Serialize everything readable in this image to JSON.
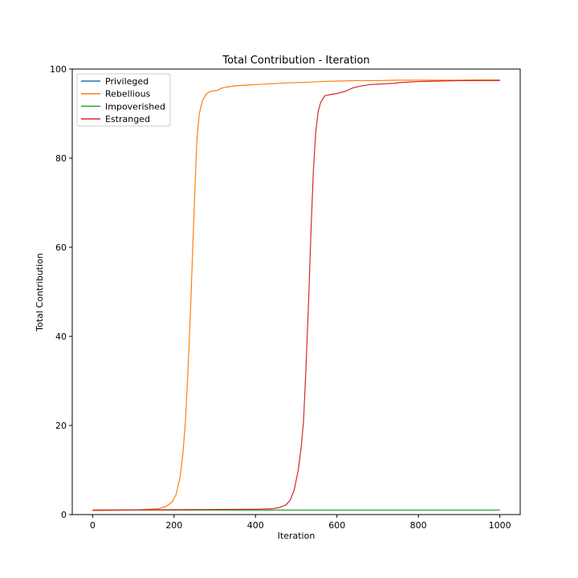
{
  "chart_data": {
    "type": "line",
    "title": "Total Contribution - Iteration",
    "xlabel": "Iteration",
    "ylabel": "Total Contribution",
    "xlim": [
      -50,
      1050
    ],
    "ylim": [
      0,
      100
    ],
    "xticks": [
      "0",
      "200",
      "400",
      "600",
      "800",
      "1000"
    ],
    "yticks": [
      "0",
      "20",
      "40",
      "60",
      "80",
      "100"
    ],
    "grid": false,
    "legend_position": "top-left",
    "series": [
      {
        "name": "Privileged",
        "color": "#1f77b4",
        "points": [
          [
            0,
            1.0
          ],
          [
            200,
            1.0
          ],
          [
            400,
            1.0
          ],
          [
            600,
            1.0
          ],
          [
            800,
            1.0
          ],
          [
            1000,
            1.0
          ]
        ]
      },
      {
        "name": "Rebellious",
        "color": "#ff7f0e",
        "points": [
          [
            0,
            0.9
          ],
          [
            100,
            1.0
          ],
          [
            160,
            1.3
          ],
          [
            180,
            1.8
          ],
          [
            195,
            2.8
          ],
          [
            205,
            4.5
          ],
          [
            215,
            8.5
          ],
          [
            222,
            14
          ],
          [
            228,
            21
          ],
          [
            234,
            32
          ],
          [
            240,
            45
          ],
          [
            246,
            60
          ],
          [
            252,
            75
          ],
          [
            256,
            84
          ],
          [
            262,
            90
          ],
          [
            270,
            93
          ],
          [
            280,
            94.5
          ],
          [
            290,
            95
          ],
          [
            305,
            95.2
          ],
          [
            320,
            95.8
          ],
          [
            340,
            96.1
          ],
          [
            360,
            96.3
          ],
          [
            380,
            96.4
          ],
          [
            400,
            96.5
          ],
          [
            440,
            96.7
          ],
          [
            480,
            96.9
          ],
          [
            520,
            97.0
          ],
          [
            560,
            97.2
          ],
          [
            600,
            97.3
          ],
          [
            650,
            97.4
          ],
          [
            700,
            97.4
          ],
          [
            750,
            97.5
          ],
          [
            800,
            97.5
          ],
          [
            850,
            97.5
          ],
          [
            900,
            97.5
          ],
          [
            950,
            97.6
          ],
          [
            1000,
            97.6
          ]
        ]
      },
      {
        "name": "Impoverished",
        "color": "#2ca02c",
        "points": [
          [
            0,
            1.0
          ],
          [
            200,
            1.0
          ],
          [
            400,
            1.0
          ],
          [
            600,
            1.0
          ],
          [
            800,
            1.0
          ],
          [
            1000,
            1.0
          ]
        ]
      },
      {
        "name": "Estranged",
        "color": "#d62728",
        "points": [
          [
            0,
            1.0
          ],
          [
            200,
            1.1
          ],
          [
            400,
            1.2
          ],
          [
            440,
            1.3
          ],
          [
            460,
            1.6
          ],
          [
            475,
            2.2
          ],
          [
            485,
            3.2
          ],
          [
            495,
            5.5
          ],
          [
            505,
            10
          ],
          [
            512,
            15
          ],
          [
            518,
            21
          ],
          [
            524,
            33
          ],
          [
            530,
            47
          ],
          [
            536,
            63
          ],
          [
            542,
            77
          ],
          [
            548,
            86
          ],
          [
            554,
            90.5
          ],
          [
            560,
            92.5
          ],
          [
            570,
            94
          ],
          [
            585,
            94.3
          ],
          [
            600,
            94.5
          ],
          [
            620,
            95
          ],
          [
            640,
            95.8
          ],
          [
            660,
            96.2
          ],
          [
            680,
            96.5
          ],
          [
            700,
            96.6
          ],
          [
            720,
            96.7
          ],
          [
            740,
            96.8
          ],
          [
            760,
            97
          ],
          [
            780,
            97.1
          ],
          [
            800,
            97.2
          ],
          [
            850,
            97.3
          ],
          [
            900,
            97.4
          ],
          [
            950,
            97.4
          ],
          [
            1000,
            97.4
          ]
        ]
      }
    ]
  }
}
